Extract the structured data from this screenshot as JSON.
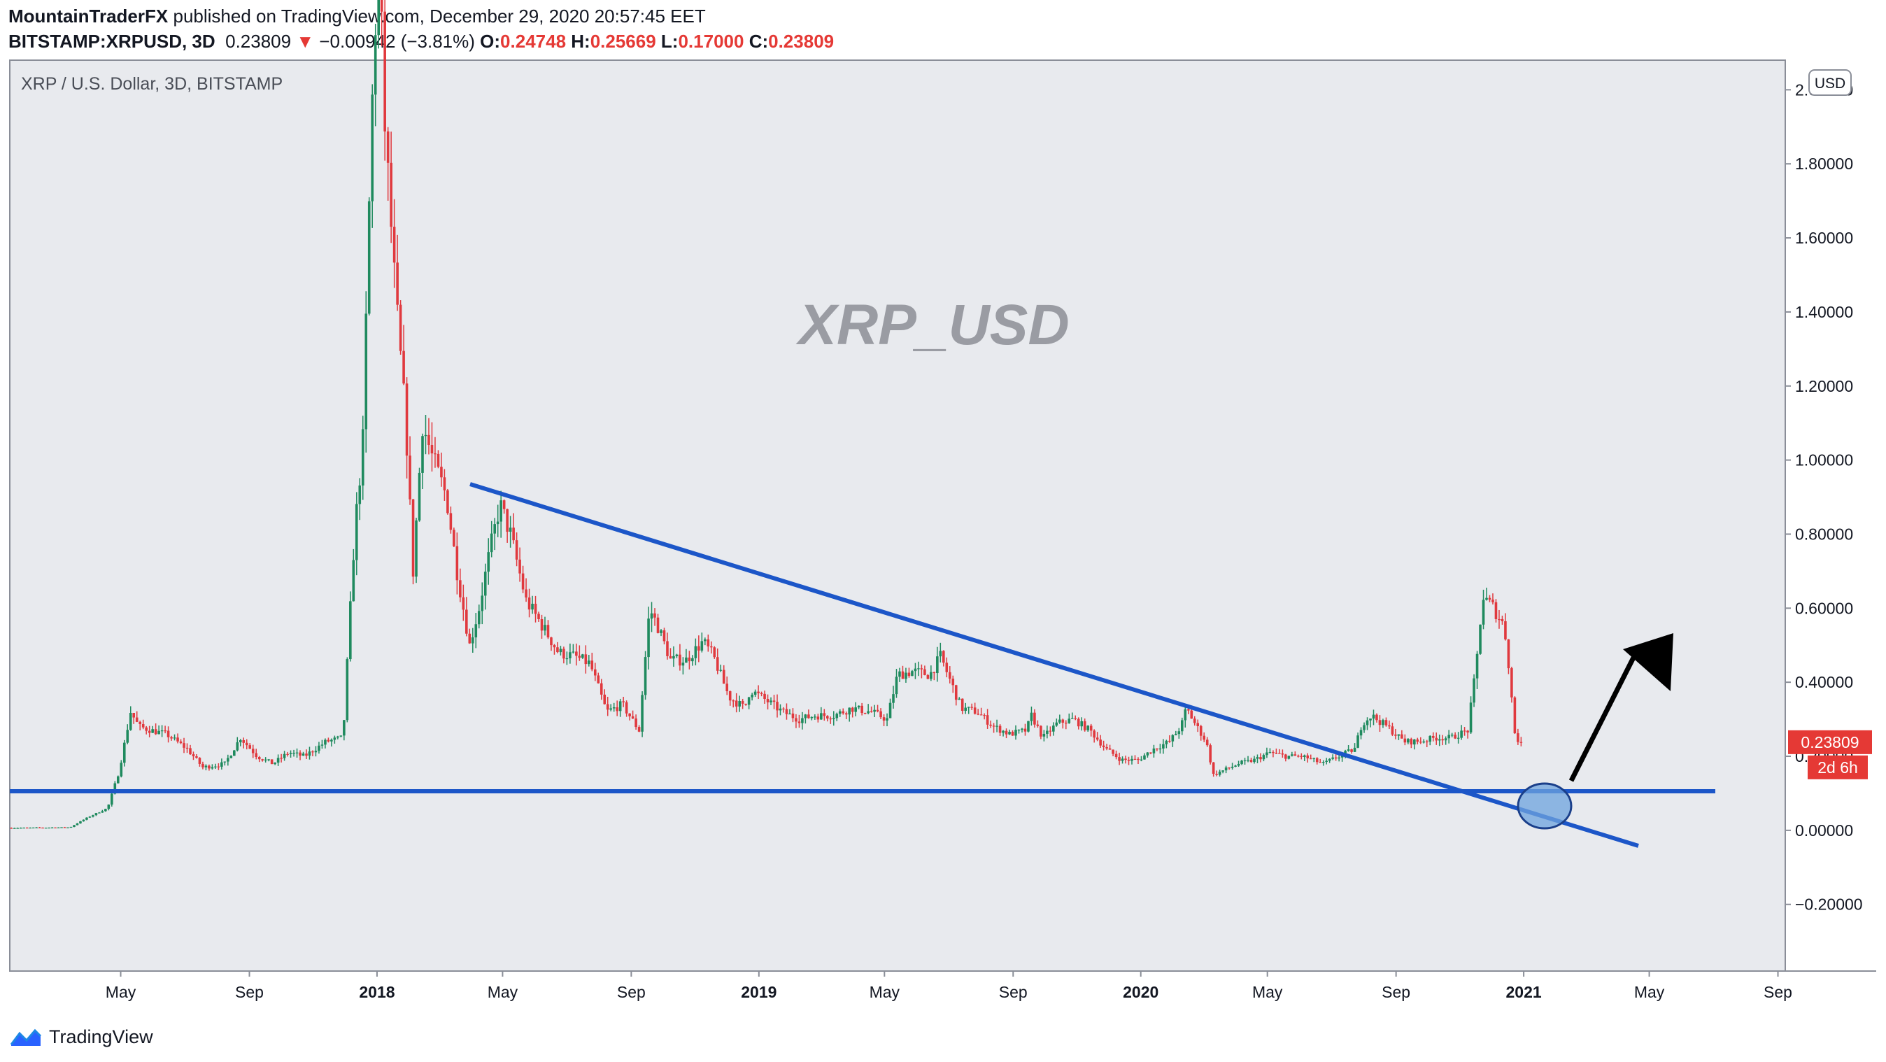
{
  "header": {
    "author": "MountainTraderFX",
    "published": "published on TradingView.com, December 29, 2020 20:57:45 EET",
    "symbol": "BITSTAMP:XRPUSD, 3D",
    "last": "0.23809",
    "change": "−0.00942 (−3.81%)",
    "o_label": "O:",
    "o_value": "0.24748",
    "h_label": "H:",
    "h_value": "0.25669",
    "l_label": "L:",
    "l_value": "0.17000",
    "c_label": "C:",
    "c_value": "0.23809"
  },
  "chart_data": {
    "type": "candlestick",
    "title": "XRP / U.S. Dollar, 3D, BITSTAMP",
    "watermark": "XRP_USD",
    "currency_label": "USD",
    "y_ticks": [
      "2.00000",
      "1.80000",
      "1.60000",
      "1.40000",
      "1.20000",
      "1.00000",
      "0.80000",
      "0.60000",
      "0.40000",
      "0.20000",
      "0.00000",
      "−0.20000"
    ],
    "y_tick_values": [
      2.0,
      1.8,
      1.6,
      1.4,
      1.2,
      1.0,
      0.8,
      0.6,
      0.4,
      0.2,
      0.0,
      -0.2
    ],
    "ylim": [
      -0.38,
      2.08
    ],
    "x_ticks": [
      "May",
      "Sep",
      "2018",
      "May",
      "Sep",
      "2019",
      "May",
      "Sep",
      "2020",
      "May",
      "Sep",
      "2021",
      "May",
      "Sep"
    ],
    "x_tick_dates": [
      "2017-05-01",
      "2017-09-01",
      "2018-01-01",
      "2018-05-01",
      "2018-09-01",
      "2019-01-01",
      "2019-05-01",
      "2019-09-01",
      "2020-01-01",
      "2020-05-01",
      "2020-09-01",
      "2021-01-01",
      "2021-05-01",
      "2021-09-01"
    ],
    "x_bold": [
      false,
      false,
      true,
      false,
      false,
      true,
      false,
      false,
      true,
      false,
      false,
      true,
      false,
      false
    ],
    "xlim": [
      "2017-01-15",
      "2021-09-08"
    ],
    "last_price_label": "0.23809",
    "countdown_label": "2d 6h",
    "last_price": 0.23809,
    "price_path": [
      [
        "2017-01-15",
        0.0065
      ],
      [
        "2017-03-15",
        0.008
      ],
      [
        "2017-04-01",
        0.035
      ],
      [
        "2017-04-20",
        0.06
      ],
      [
        "2017-05-01",
        0.16
      ],
      [
        "2017-05-12",
        0.32
      ],
      [
        "2017-05-20",
        0.28
      ],
      [
        "2017-06-01",
        0.27
      ],
      [
        "2017-06-15",
        0.26
      ],
      [
        "2017-07-05",
        0.22
      ],
      [
        "2017-07-20",
        0.17
      ],
      [
        "2017-08-10",
        0.18
      ],
      [
        "2017-08-25",
        0.25
      ],
      [
        "2017-09-10",
        0.2
      ],
      [
        "2017-09-25",
        0.18
      ],
      [
        "2017-10-10",
        0.21
      ],
      [
        "2017-10-25",
        0.2
      ],
      [
        "2017-11-15",
        0.24
      ],
      [
        "2017-12-01",
        0.25
      ],
      [
        "2017-12-12",
        0.8
      ],
      [
        "2017-12-20",
        1.05
      ],
      [
        "2017-12-28",
        1.9
      ],
      [
        "2018-01-04",
        2.4
      ],
      [
        "2018-01-10",
        1.9
      ],
      [
        "2018-01-20",
        1.45
      ],
      [
        "2018-01-30",
        1.1
      ],
      [
        "2018-02-06",
        0.7
      ],
      [
        "2018-02-15",
        1.1
      ],
      [
        "2018-02-25",
        1.0
      ],
      [
        "2018-03-10",
        0.9
      ],
      [
        "2018-03-20",
        0.7
      ],
      [
        "2018-04-01",
        0.5
      ],
      [
        "2018-04-10",
        0.6
      ],
      [
        "2018-04-20",
        0.75
      ],
      [
        "2018-04-30",
        0.88
      ],
      [
        "2018-05-10",
        0.8
      ],
      [
        "2018-05-25",
        0.62
      ],
      [
        "2018-06-10",
        0.55
      ],
      [
        "2018-06-25",
        0.48
      ],
      [
        "2018-07-10",
        0.47
      ],
      [
        "2018-07-25",
        0.45
      ],
      [
        "2018-08-10",
        0.32
      ],
      [
        "2018-08-25",
        0.34
      ],
      [
        "2018-09-10",
        0.27
      ],
      [
        "2018-09-20",
        0.6
      ],
      [
        "2018-09-28",
        0.55
      ],
      [
        "2018-10-10",
        0.46
      ],
      [
        "2018-10-25",
        0.46
      ],
      [
        "2018-11-10",
        0.51
      ],
      [
        "2018-11-20",
        0.47
      ],
      [
        "2018-12-05",
        0.36
      ],
      [
        "2018-12-20",
        0.33
      ],
      [
        "2018-12-25",
        0.38
      ],
      [
        "2019-01-10",
        0.35
      ],
      [
        "2019-01-25",
        0.32
      ],
      [
        "2019-02-10",
        0.3
      ],
      [
        "2019-02-25",
        0.31
      ],
      [
        "2019-03-15",
        0.31
      ],
      [
        "2019-04-01",
        0.33
      ],
      [
        "2019-04-20",
        0.32
      ],
      [
        "2019-05-05",
        0.3
      ],
      [
        "2019-05-15",
        0.42
      ],
      [
        "2019-05-30",
        0.43
      ],
      [
        "2019-06-15",
        0.42
      ],
      [
        "2019-06-25",
        0.47
      ],
      [
        "2019-07-05",
        0.4
      ],
      [
        "2019-07-15",
        0.33
      ],
      [
        "2019-07-30",
        0.32
      ],
      [
        "2019-08-15",
        0.28
      ],
      [
        "2019-08-30",
        0.26
      ],
      [
        "2019-09-15",
        0.27
      ],
      [
        "2019-09-20",
        0.31
      ],
      [
        "2019-10-01",
        0.25
      ],
      [
        "2019-10-15",
        0.29
      ],
      [
        "2019-10-30",
        0.3
      ],
      [
        "2019-11-15",
        0.27
      ],
      [
        "2019-11-30",
        0.22
      ],
      [
        "2019-12-15",
        0.19
      ],
      [
        "2019-12-31",
        0.19
      ],
      [
        "2020-01-15",
        0.22
      ],
      [
        "2020-01-30",
        0.24
      ],
      [
        "2020-02-10",
        0.28
      ],
      [
        "2020-02-15",
        0.33
      ],
      [
        "2020-02-25",
        0.28
      ],
      [
        "2020-03-05",
        0.24
      ],
      [
        "2020-03-12",
        0.15
      ],
      [
        "2020-03-20",
        0.16
      ],
      [
        "2020-04-05",
        0.18
      ],
      [
        "2020-04-20",
        0.19
      ],
      [
        "2020-05-05",
        0.21
      ],
      [
        "2020-05-20",
        0.2
      ],
      [
        "2020-06-05",
        0.2
      ],
      [
        "2020-06-25",
        0.18
      ],
      [
        "2020-07-10",
        0.2
      ],
      [
        "2020-07-25",
        0.22
      ],
      [
        "2020-08-01",
        0.29
      ],
      [
        "2020-08-10",
        0.31
      ],
      [
        "2020-08-25",
        0.28
      ],
      [
        "2020-09-10",
        0.24
      ],
      [
        "2020-09-25",
        0.24
      ],
      [
        "2020-10-10",
        0.25
      ],
      [
        "2020-10-25",
        0.25
      ],
      [
        "2020-11-10",
        0.27
      ],
      [
        "2020-11-18",
        0.44
      ],
      [
        "2020-11-24",
        0.63
      ],
      [
        "2020-12-05",
        0.6
      ],
      [
        "2020-12-15",
        0.55
      ],
      [
        "2020-12-21",
        0.4
      ],
      [
        "2020-12-24",
        0.27
      ],
      [
        "2020-12-29",
        0.238
      ]
    ]
  }
}
